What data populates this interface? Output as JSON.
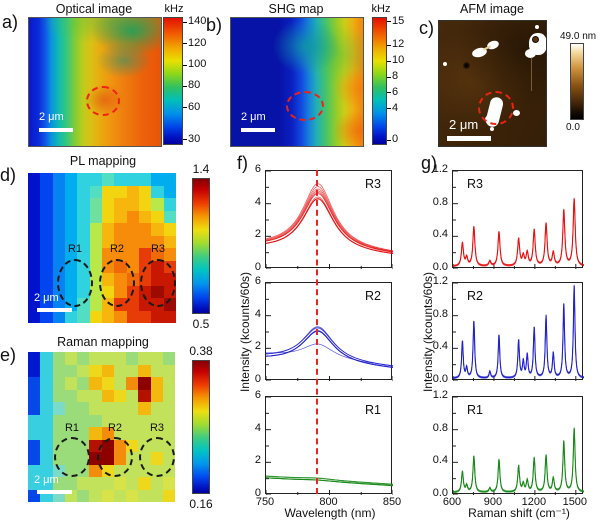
{
  "panels": {
    "a": {
      "letter": "a)",
      "title": "Optical image",
      "colorbar": {
        "unit": "kHz",
        "tick_values": [
          140,
          120,
          100,
          80,
          60,
          30
        ],
        "min": 25,
        "max": 145
      },
      "scalebar_label": "2 μm"
    },
    "b": {
      "letter": "b)",
      "title": "SHG map",
      "colorbar": {
        "unit": "kHz",
        "tick_values": [
          15,
          12,
          10,
          8,
          6,
          4,
          0
        ],
        "min": -0.6,
        "max": 15.6
      },
      "scalebar_label": "2 μm"
    },
    "c": {
      "letter": "c)",
      "title": "AFM image",
      "colorbar": {
        "top_label": "49.0 nm",
        "bottom_label": "0.0"
      },
      "scalebar_label": "2 μm"
    },
    "d": {
      "letter": "d)",
      "title": "PL mapping",
      "colorbar": {
        "top_label": "1.4",
        "bottom_label": "0.5"
      },
      "region_labels": [
        "R1",
        "R2",
        "R3"
      ],
      "scalebar_label": "2 μm"
    },
    "e": {
      "letter": "e)",
      "title": "Raman mapping",
      "colorbar": {
        "top_label": "0.38",
        "bottom_label": "0.16"
      },
      "region_labels": [
        "R1",
        "R2",
        "R3"
      ],
      "scalebar_label": "2 μm"
    },
    "f": {
      "letter": "f)",
      "xlabel": "Wavelength (nm)",
      "ylabel": "Intensity (kcounts/60s)"
    },
    "g": {
      "letter": "g)",
      "xlabel": "Raman shift (cm⁻¹)",
      "ylabel": "Intensity (kcounts/60s)"
    }
  },
  "chart_data": [
    {
      "id": "f-spectra",
      "type": "line",
      "panel": "f",
      "xlabel": "Wavelength (nm)",
      "ylabel": "Intensity (kcounts/60s)",
      "x_range": [
        750,
        850
      ],
      "x_ticks": [
        750,
        800,
        850
      ],
      "x_minor_ticks": [
        775,
        825
      ],
      "y_range": [
        0,
        6
      ],
      "y_ticks": [
        6,
        4,
        2,
        0
      ],
      "y_minor_ticks": [
        1,
        3,
        5
      ],
      "dashed_line_x": 791,
      "subplots": [
        {
          "label": "R3",
          "color": "#e51212",
          "curves": [
            {
              "center": 791,
              "width": 15,
              "amplitude": 3.3,
              "baseline_start": 1.18,
              "baseline_end": 0.75
            },
            {
              "center": 791,
              "width": 15,
              "amplitude": 3.42,
              "baseline_start": 1.22,
              "baseline_end": 0.78
            },
            {
              "center": 791,
              "width": 15,
              "amplitude": 3.5,
              "baseline_start": 1.25,
              "baseline_end": 0.8
            },
            {
              "center": 791,
              "width": 15,
              "amplitude": 3.6,
              "baseline_start": 1.28,
              "baseline_end": 0.8
            },
            {
              "center": 791,
              "width": 15,
              "amplitude": 3.68,
              "baseline_start": 1.3,
              "baseline_end": 0.82
            },
            {
              "center": 791,
              "width": 15,
              "amplitude": 3.78,
              "baseline_start": 1.32,
              "baseline_end": 0.84
            },
            {
              "center": 791,
              "width": 15,
              "amplitude": 3.9,
              "baseline_start": 1.35,
              "baseline_end": 0.86
            },
            {
              "center": 791,
              "width": 15,
              "amplitude": 4.05,
              "baseline_start": 1.38,
              "baseline_end": 0.88
            }
          ]
        },
        {
          "label": "R2",
          "color": "#2222cc",
          "curves": [
            {
              "center": 791,
              "width": 15,
              "amplitude": 2.0,
              "baseline_start": 1.28,
              "baseline_end": 0.72
            },
            {
              "center": 791,
              "width": 15,
              "amplitude": 2.06,
              "baseline_start": 1.32,
              "baseline_end": 0.74
            },
            {
              "center": 791,
              "width": 15,
              "amplitude": 2.12,
              "baseline_start": 1.35,
              "baseline_end": 0.76
            },
            {
              "center": 791,
              "width": 15,
              "amplitude": 2.18,
              "baseline_start": 1.4,
              "baseline_end": 0.78
            },
            {
              "center": 791,
              "width": 15,
              "amplitude": 2.05,
              "baseline_start": 1.45,
              "baseline_end": 0.8
            },
            {
              "center": 791,
              "width": 15,
              "amplitude": 0.95,
              "baseline_start": 1.62,
              "baseline_end": 0.88
            }
          ]
        },
        {
          "label": "R1",
          "color": "#1a8a1a",
          "curves": [
            {
              "center": 791,
              "width": 15,
              "amplitude": 0.06,
              "baseline_start": 1.05,
              "baseline_end": 0.58
            },
            {
              "center": 791,
              "width": 15,
              "amplitude": 0.07,
              "baseline_start": 1.08,
              "baseline_end": 0.6
            },
            {
              "center": 791,
              "width": 15,
              "amplitude": 0.08,
              "baseline_start": 1.1,
              "baseline_end": 0.62
            },
            {
              "center": 791,
              "width": 15,
              "amplitude": 0.09,
              "baseline_start": 1.13,
              "baseline_end": 0.63
            },
            {
              "center": 791,
              "width": 15,
              "amplitude": 0.1,
              "baseline_start": 1.16,
              "baseline_end": 0.65
            }
          ]
        }
      ]
    },
    {
      "id": "g-spectra",
      "type": "line",
      "panel": "g",
      "xlabel": "Raman shift (cm⁻¹)",
      "ylabel": "Intensity (kcounts/60s)",
      "x_range": [
        600,
        1560
      ],
      "x_ticks": [
        600,
        900,
        1200,
        1500
      ],
      "x_minor_ticks": [
        750,
        1050,
        1350
      ],
      "y_range": [
        0,
        1.2
      ],
      "y_ticks": [
        1.2,
        0.8,
        0.4,
        0.0
      ],
      "y_minor_ticks": [
        0.2,
        0.6,
        1.0
      ],
      "peak_positions": [
        669,
        700,
        753,
        870,
        937,
        1081,
        1115,
        1144,
        1195,
        1282,
        1335,
        1412,
        1488
      ],
      "subplots": [
        {
          "label": "R3",
          "color": "#e51212",
          "gamma": 9,
          "baseline": 0.03,
          "peak_heights": [
            0.28,
            0.1,
            0.48,
            0.06,
            0.42,
            0.33,
            0.12,
            0.16,
            0.44,
            0.52,
            0.16,
            0.68,
            0.82
          ]
        },
        {
          "label": "R2",
          "color": "#2222cc",
          "gamma": 7,
          "baseline": 0.03,
          "peak_heights": [
            0.45,
            0.12,
            0.7,
            0.08,
            0.53,
            0.46,
            0.2,
            0.28,
            0.62,
            0.76,
            0.3,
            0.9,
            1.13
          ]
        },
        {
          "label": "R1",
          "color": "#1a8a1a",
          "gamma": 8,
          "baseline": 0.03,
          "peak_heights": [
            0.25,
            0.08,
            0.44,
            0.05,
            0.4,
            0.32,
            0.1,
            0.14,
            0.42,
            0.45,
            0.17,
            0.62,
            0.78
          ]
        }
      ]
    },
    {
      "id": "d-map",
      "type": "heatmap",
      "title": "PL mapping",
      "scale_min": 0.5,
      "scale_max": 1.4,
      "grid_colors": [
        [
          "#0012cc",
          "#0045f0",
          "#0682f2",
          "#00aef0",
          "#2fd2de",
          "#2fd2de",
          "#52dec2",
          "#2fd2de",
          "#2fd2de",
          "#2fd2de",
          "#00aef0",
          "#00aef0"
        ],
        [
          "#0012cc",
          "#0045f0",
          "#0682f2",
          "#00aef0",
          "#2fd2de",
          "#52dec2",
          "#f2d410",
          "#f2d410",
          "#f7b60d",
          "#f2d410",
          "#2fd2de",
          "#00aef0"
        ],
        [
          "#0012cc",
          "#0045f0",
          "#0682f2",
          "#00aef0",
          "#2fd2de",
          "#6fe0a0",
          "#f2d410",
          "#f7b60d",
          "#f7b60d",
          "#f2d410",
          "#b8e84a",
          "#2fd2de"
        ],
        [
          "#0012cc",
          "#0045f0",
          "#0682f2",
          "#00aef0",
          "#2fd2de",
          "#6fe0a0",
          "#f2d410",
          "#f7b60d",
          "#f78c0a",
          "#f7b60d",
          "#f2d410",
          "#52dec2"
        ],
        [
          "#0012cc",
          "#0045f0",
          "#0682f2",
          "#00aef0",
          "#2fd2de",
          "#b8e84a",
          "#f7b60d",
          "#f78c0a",
          "#f78c0a",
          "#f78c0a",
          "#f7b60d",
          "#f2d410"
        ],
        [
          "#0012cc",
          "#0045f0",
          "#0682f2",
          "#00aef0",
          "#2fd2de",
          "#b8e84a",
          "#f7b60d",
          "#f78c0a",
          "#f78c0a",
          "#f78c0a",
          "#f78c0a",
          "#f7b60d"
        ],
        [
          "#0012cc",
          "#0045f0",
          "#0682f2",
          "#00aef0",
          "#2fd2de",
          "#b8e84a",
          "#f78c0a",
          "#f78c0a",
          "#f78c0a",
          "#e83c08",
          "#f06a08",
          "#f78c0a"
        ],
        [
          "#0012cc",
          "#0045f0",
          "#0682f2",
          "#00aef0",
          "#2fd2de",
          "#b8e84a",
          "#f78c0a",
          "#f06a08",
          "#f78c0a",
          "#e83c08",
          "#c81800",
          "#e83c08"
        ],
        [
          "#0012cc",
          "#0045f0",
          "#0682f2",
          "#00aef0",
          "#2fd2de",
          "#b8e84a",
          "#f7b60d",
          "#f78c0a",
          "#f06a08",
          "#e83c08",
          "#c81800",
          "#c81800"
        ],
        [
          "#0012cc",
          "#0045f0",
          "#0682f2",
          "#00aef0",
          "#2fd2de",
          "#b8e84a",
          "#f2d410",
          "#f78c0a",
          "#e83c08",
          "#c81800",
          "#9c0a00",
          "#c81800"
        ],
        [
          "#0012cc",
          "#0045f0",
          "#0682f2",
          "#00aef0",
          "#52dec2",
          "#b8e84a",
          "#f7b60d",
          "#e83c08",
          "#e83c08",
          "#c81800",
          "#c81800",
          "#9c0a00"
        ],
        [
          "#0012cc",
          "#0045f0",
          "#0682f2",
          "#2fd2de",
          "#52dec2",
          "#f2d410",
          "#f7b60d",
          "#f78c0a",
          "#e83c08",
          "#e83c08",
          "#c81800",
          "#c81800"
        ]
      ]
    },
    {
      "id": "e-map",
      "type": "heatmap",
      "title": "Raman mapping",
      "scale_min": 0.16,
      "scale_max": 0.38,
      "grid_colors": [
        [
          "#0018d0",
          "#38cfe0",
          "#9adc7a",
          "#c3e25c",
          "#9adc7a",
          "#c3e25c",
          "#c3e25c",
          "#c3e25c",
          "#9adc7a",
          "#c3e25c",
          "#c3e25c",
          "#9adc7a"
        ],
        [
          "#0018d0",
          "#38cfe0",
          "#9adc7a",
          "#9adc7a",
          "#c3e25c",
          "#efd71c",
          "#f4b70e",
          "#c3e25c",
          "#c3e25c",
          "#f4b70e",
          "#c3e25c",
          "#c3e25c"
        ],
        [
          "#0448e8",
          "#38cfe0",
          "#9adc7a",
          "#c3e25c",
          "#9adc7a",
          "#f4b70e",
          "#efd71c",
          "#c3e25c",
          "#f28c0a",
          "#8c0000",
          "#f4b70e",
          "#c3e25c"
        ],
        [
          "#0448e8",
          "#38cfe0",
          "#9adc7a",
          "#9adc7a",
          "#c3e25c",
          "#c3e25c",
          "#f4b70e",
          "#efd71c",
          "#c3e25c",
          "#b41200",
          "#f4b70e",
          "#c3e25c"
        ],
        [
          "#0448e8",
          "#38cfe0",
          "#7adbc8",
          "#9adc7a",
          "#9adc7a",
          "#c3e25c",
          "#c3e25c",
          "#c3e25c",
          "#c3e25c",
          "#f4b70e",
          "#c3e25c",
          "#c3e25c"
        ],
        [
          "#38cfe0",
          "#38cfe0",
          "#9adc7a",
          "#9adc7a",
          "#9adc7a",
          "#9adc7a",
          "#c3e25c",
          "#c3e25c",
          "#c3e25c",
          "#c3e25c",
          "#c3e25c",
          "#c3e25c"
        ],
        [
          "#38cfe0",
          "#38cfe0",
          "#9adc7a",
          "#9adc7a",
          "#9adc7a",
          "#f4b70e",
          "#f28c0a",
          "#c3e25c",
          "#c3e25c",
          "#c3e25c",
          "#c3e25c",
          "#c3e25c"
        ],
        [
          "#0448e8",
          "#38cfe0",
          "#9adc7a",
          "#9adc7a",
          "#9adc7a",
          "#b41200",
          "#8c0000",
          "#f28c0a",
          "#efd71c",
          "#c3e25c",
          "#c3e25c",
          "#c3e25c"
        ],
        [
          "#0448e8",
          "#38cfe0",
          "#9adc7a",
          "#9adc7a",
          "#9adc7a",
          "#8c0000",
          "#8c0000",
          "#f28c0a",
          "#c3e25c",
          "#c3e25c",
          "#efd71c",
          "#c3e25c"
        ],
        [
          "#38cfe0",
          "#38cfe0",
          "#7adbc8",
          "#9adc7a",
          "#9adc7a",
          "#f28c0a",
          "#efd71c",
          "#c3e25c",
          "#c3e25c",
          "#c3e25c",
          "#c3e25c",
          "#c3e25c"
        ],
        [
          "#38cfe0",
          "#38cfe0",
          "#9adc7a",
          "#9adc7a",
          "#c3e25c",
          "#c3e25c",
          "#c3e25c",
          "#d7e348",
          "#c3e25c",
          "#efd71c",
          "#c3e25c",
          "#d7e348"
        ],
        [
          "#0448e8",
          "#38cfe0",
          "#7adbc8",
          "#c3e25c",
          "#9adc7a",
          "#c3e25c",
          "#d7e348",
          "#c3e25c",
          "#d7e348",
          "#c3e25c",
          "#c3e25c",
          "#efd71c"
        ]
      ]
    }
  ]
}
